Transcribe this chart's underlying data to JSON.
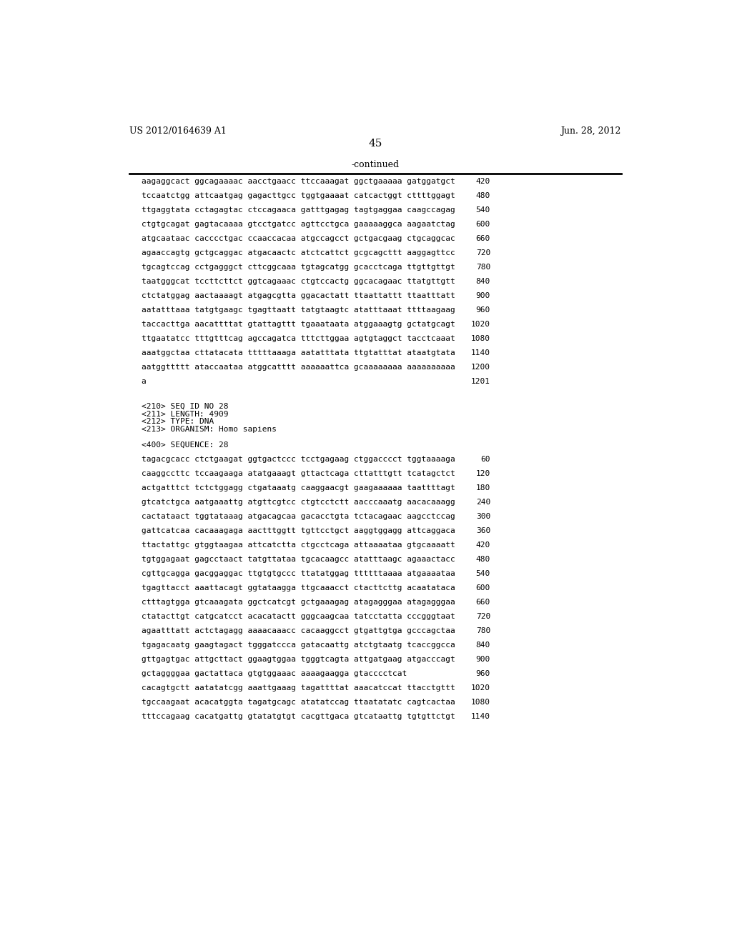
{
  "header_left": "US 2012/0164639 A1",
  "header_right": "Jun. 28, 2012",
  "page_number": "45",
  "continued_label": "-continued",
  "background_color": "#ffffff",
  "text_color": "#000000",
  "mono_font_size": 8.0,
  "sequence_lines_top": [
    [
      "aagaggcact ggcagaaaac aacctgaacc ttccaaagat ggctgaaaaa gatggatgct",
      "420"
    ],
    [
      "tccaatctgg attcaatgag gagacttgcc tggtgaaaat catcactggt cttttggagt",
      "480"
    ],
    [
      "ttgaggtata cctagagtac ctccagaaca gatttgagag tagtgaggaa caagccagag",
      "540"
    ],
    [
      "ctgtgcagat gagtacaaaa gtcctgatcc agttcctgca gaaaaaggca aagaatctag",
      "600"
    ],
    [
      "atgcaataac cacccctgac ccaaccacaa atgccagcct gctgacgaag ctgcaggcac",
      "660"
    ],
    [
      "agaaccagtg gctgcaggac atgacaactc atctcattct gcgcagcttt aaggagttcc",
      "720"
    ],
    [
      "tgcagtccag cctgagggct cttcggcaaa tgtagcatgg gcacctcaga ttgttgttgt",
      "780"
    ],
    [
      "taatgggcat tccttcttct ggtcagaaac ctgtccactg ggcacagaac ttatgttgtt",
      "840"
    ],
    [
      "ctctatggag aactaaaagt atgagcgtta ggacactatt ttaattattt ttaatttatt",
      "900"
    ],
    [
      "aatatttaaa tatgtgaagc tgagttaatt tatgtaagtc atatttaaat ttttaagaag",
      "960"
    ],
    [
      "taccacttga aacattttat gtattagttt tgaaataata atggaaagtg gctatgcagt",
      "1020"
    ],
    [
      "ttgaatatcc tttgtttcag agccagatca tttcttggaa agtgtaggct tacctcaaat",
      "1080"
    ],
    [
      "aaatggctaa cttatacata tttttaaaga aatatttata ttgtatttat ataatgtata",
      "1140"
    ],
    [
      "aatggttttt ataccaataa atggcatttt aaaaaattca gcaaaaaaaa aaaaaaaaaa",
      "1200"
    ],
    [
      "a",
      "1201"
    ]
  ],
  "metadata_lines": [
    "<210> SEQ ID NO 28",
    "<211> LENGTH: 4909",
    "<212> TYPE: DNA",
    "<213> ORGANISM: Homo sapiens",
    "",
    "<400> SEQUENCE: 28"
  ],
  "sequence_lines_bottom": [
    [
      "tagacgcacc ctctgaagat ggtgactccc tcctgagaag ctggacccct tggtaaaaga",
      "60"
    ],
    [
      "caaggccttc tccaagaaga atatgaaagt gttactcaga cttatttgtt tcatagctct",
      "120"
    ],
    [
      "actgatttct tctctggagg ctgataaatg caaggaacgt gaagaaaaaa taattttagt",
      "180"
    ],
    [
      "gtcatctgca aatgaaattg atgttcgtcc ctgtcctctt aacccaaatg aacacaaagg",
      "240"
    ],
    [
      "cactataact tggtataaag atgacagcaa gacacctgta tctacagaac aagcctccag",
      "300"
    ],
    [
      "gattcatcaa cacaaagaga aactttggtt tgttcctgct aaggtggagg attcaggaca",
      "360"
    ],
    [
      "ttactattgc gtggtaagaa attcatctta ctgcctcaga attaaaataa gtgcaaaatt",
      "420"
    ],
    [
      "tgtggagaat gagcctaact tatgttataa tgcacaagcc atatttaagc agaaactacc",
      "480"
    ],
    [
      "cgttgcagga gacggaggac ttgtgtgccc ttatatggag ttttttaaaa atgaaaataa",
      "540"
    ],
    [
      "tgagttacct aaattacagt ggtataagga ttgcaaacct ctacttcttg acaatataca",
      "600"
    ],
    [
      "ctttagtgga gtcaaagata ggctcatcgt gctgaaagag atagagggaa atagagggaa",
      "660"
    ],
    [
      "ctatacttgt catgcatcct acacatactt gggcaagcaa tatcctatta cccgggtaat",
      "720"
    ],
    [
      "agaatttatt actctagagg aaaacaaacc cacaaggcct gtgattgtga gcccagctaa",
      "780"
    ],
    [
      "tgagacaatg gaagtagact tgggatccca gatacaattg atctgtaatg tcaccggcca",
      "840"
    ],
    [
      "gttgagtgac attgcttact ggaagtggaa tgggtcagta attgatgaag atgacccagt",
      "900"
    ],
    [
      "gctaggggaa gactattaca gtgtggaaac aaaagaagga gtacccctcat",
      "960"
    ],
    [
      "cacagtgctt aatatatcgg aaattgaaag tagattttat aaacatccat ttacctgttt",
      "1020"
    ],
    [
      "tgccaagaat acacatggta tagatgcagc atatatccag ttaatatatc cagtcactaa",
      "1080"
    ],
    [
      "tttccagaag cacatgattg gtatatgtgt cacgttgaca gtcataattg tgtgttctgt",
      "1140"
    ]
  ]
}
